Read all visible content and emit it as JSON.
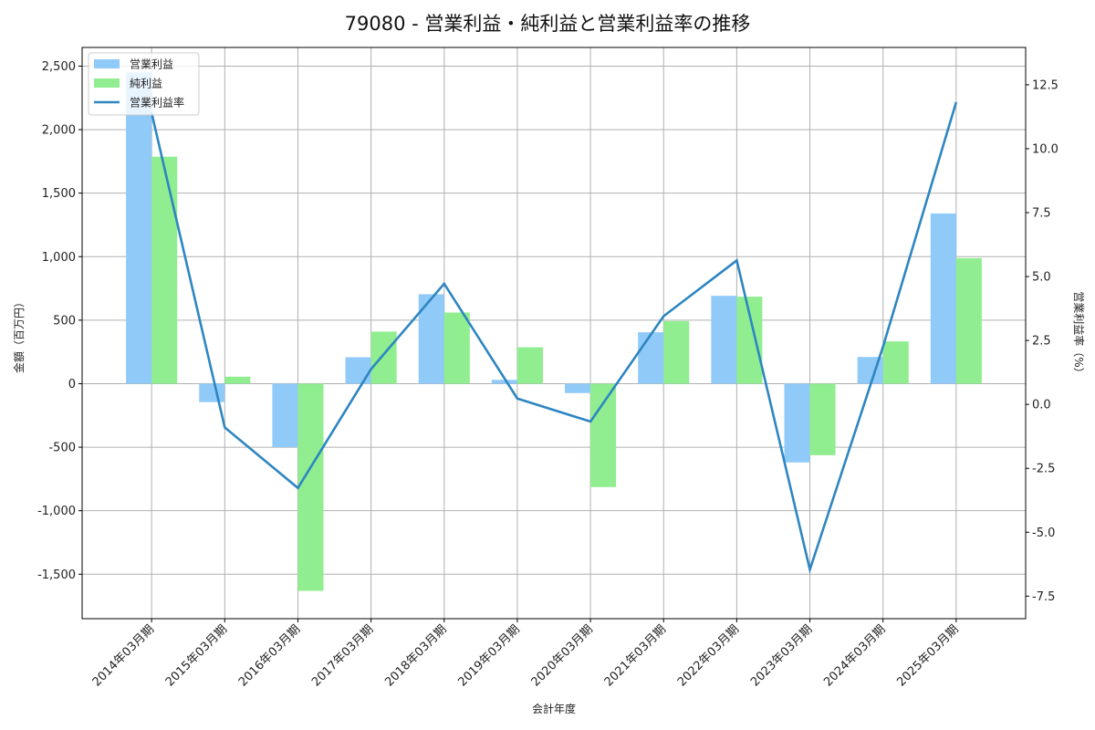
{
  "title": "79080 - 営業利益・純利益と営業利益率の推移",
  "chart_data": {
    "type": "bar",
    "title": "79080 - 営業利益・純利益と営業利益率の推移",
    "xlabel": "会計年度",
    "ylabel": "金額（百万円）",
    "y2label": "営業利益率（%）",
    "categories": [
      "2014年03月期",
      "2015年03月期",
      "2016年03月期",
      "2017年03月期",
      "2018年03月期",
      "2019年03月期",
      "2020年03月期",
      "2021年03月期",
      "2022年03月期",
      "2023年03月期",
      "2024年03月期",
      "2025年03月期"
    ],
    "series": [
      {
        "name": "営業利益",
        "type": "bar",
        "axis": "left",
        "color": "#90CAF9",
        "values": [
          2450,
          -145,
          -500,
          208,
          704,
          30,
          -74,
          405,
          692,
          -620,
          210,
          1340
        ]
      },
      {
        "name": "純利益",
        "type": "bar",
        "axis": "left",
        "color": "#90EE90",
        "values": [
          1787,
          55,
          -1631,
          410,
          560,
          287,
          -814,
          493,
          685,
          -563,
          333,
          988
        ]
      },
      {
        "name": "営業利益率",
        "type": "line",
        "axis": "right",
        "color": "#2E86C1",
        "values": [
          11.4,
          -0.9,
          -3.27,
          1.38,
          4.72,
          0.23,
          -0.67,
          3.45,
          5.63,
          -6.46,
          2.26,
          11.82
        ]
      }
    ],
    "ylim": [
      -1850,
      2647
    ],
    "y2lim": [
      -8.38,
      13.96
    ],
    "yticks": [
      -1500,
      -1000,
      -500,
      0,
      500,
      1000,
      1500,
      2000,
      2500
    ],
    "ytick_labels": [
      "-1,500",
      "-1,000",
      "-500",
      "0",
      "500",
      "1,000",
      "1,500",
      "2,000",
      "2,500"
    ],
    "y2ticks": [
      -7.5,
      -5.0,
      -2.5,
      0.0,
      2.5,
      5.0,
      7.5,
      10.0,
      12.5
    ],
    "y2tick_labels": [
      "-7.5",
      "-5.0",
      "-2.5",
      "0.0",
      "2.5",
      "5.0",
      "7.5",
      "10.0",
      "12.5"
    ],
    "grid": true,
    "legend_position": "upper left"
  },
  "legend": [
    {
      "label": "営業利益",
      "kind": "patch",
      "color": "#90CAF9"
    },
    {
      "label": "純利益",
      "kind": "patch",
      "color": "#90EE90"
    },
    {
      "label": "営業利益率",
      "kind": "line",
      "color": "#2E86C1"
    }
  ]
}
